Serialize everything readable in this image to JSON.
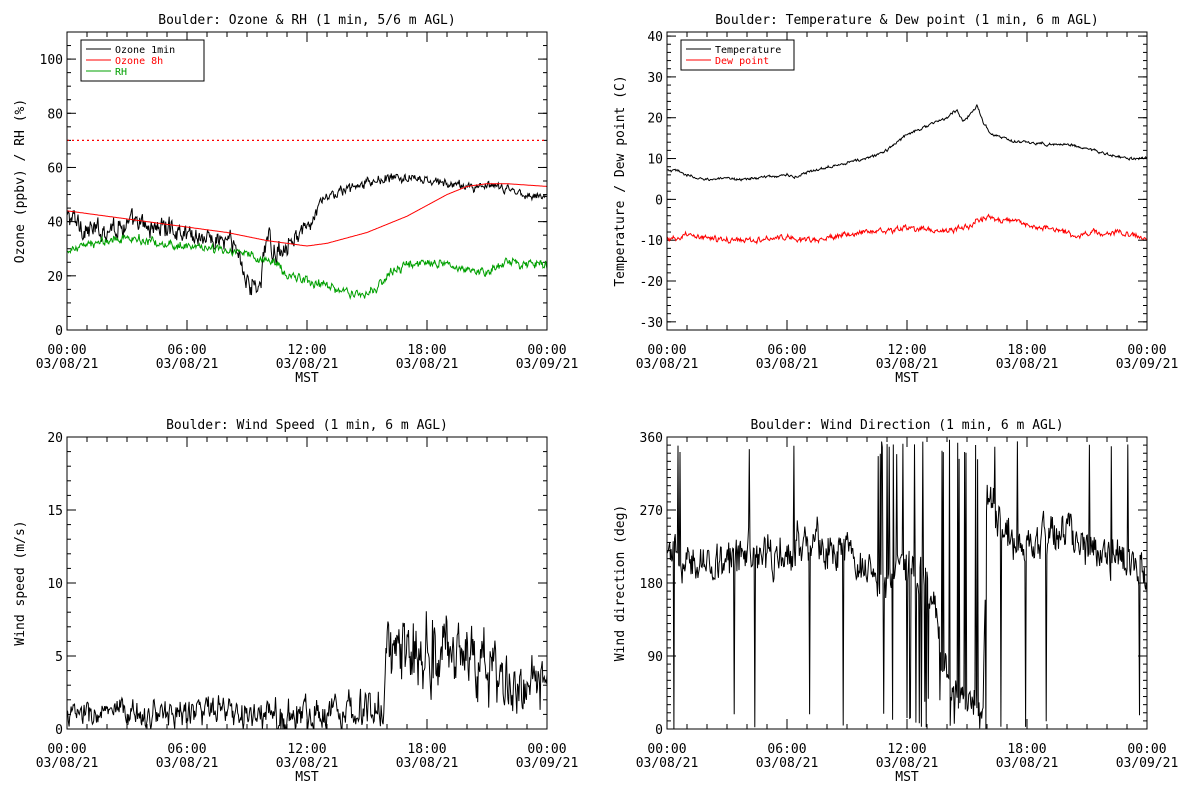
{
  "chart_data": [
    {
      "type": "line",
      "title": "Boulder: Ozone & RH (1 min, 5/6 m AGL)",
      "xlabel": "MST",
      "ylabel": "Ozone (ppbv) / RH (%)",
      "xlim": [
        0,
        24
      ],
      "ylim": [
        0,
        110
      ],
      "xticks": [
        {
          "value": 0,
          "time": "00:00",
          "date": "03/08/21"
        },
        {
          "value": 6,
          "time": "06:00",
          "date": "03/08/21"
        },
        {
          "value": 12,
          "time": "12:00",
          "date": "03/08/21"
        },
        {
          "value": 18,
          "time": "18:00",
          "date": "03/08/21"
        },
        {
          "value": 24,
          "time": "00:00",
          "date": "03/09/21"
        }
      ],
      "yticks": [
        0,
        20,
        40,
        60,
        80,
        100
      ],
      "minor_x_step": 1,
      "minor_y_step": 5,
      "legend": {
        "position": "top-left"
      },
      "reference_lines": [
        {
          "y": 70,
          "color": "#ff0000",
          "style": "dotted"
        }
      ],
      "series": [
        {
          "name": "Ozone 1min",
          "color": "#000000",
          "noise": 2.5,
          "noise_varying": [
            [
              0,
              3
            ],
            [
              8,
              3
            ],
            [
              9,
              4
            ],
            [
              10.5,
              3
            ],
            [
              12.5,
              1.5
            ],
            [
              24,
              1
            ]
          ],
          "x": [
            0,
            0.5,
            1,
            1.5,
            2,
            3,
            4,
            5,
            6,
            7,
            7.5,
            8,
            8.5,
            9,
            9.3,
            9.6,
            9.8,
            10,
            10.3,
            10.6,
            11,
            11.5,
            12,
            12.3,
            12.7,
            13,
            14,
            15,
            16,
            17,
            18,
            19,
            20,
            21,
            22,
            23,
            24
          ],
          "y": [
            42,
            40,
            37,
            36,
            38,
            39,
            38,
            38,
            36,
            34,
            33,
            33,
            29,
            20,
            14,
            18,
            24,
            35,
            28,
            30,
            33,
            35,
            37,
            40,
            47,
            49,
            52,
            54,
            56,
            56,
            55,
            54,
            53,
            53,
            52,
            50,
            49
          ]
        },
        {
          "name": "Ozone 8h",
          "color": "#ff0000",
          "noise": 0,
          "x": [
            0,
            2,
            4,
            6,
            8,
            10,
            11,
            12,
            13,
            14,
            15,
            16,
            17,
            18,
            19,
            20,
            21,
            22,
            23,
            24
          ],
          "y": [
            44,
            42,
            40,
            38,
            36,
            33,
            32,
            31,
            32,
            34,
            36,
            39,
            42,
            46,
            50,
            53,
            54,
            54,
            53.5,
            53
          ]
        },
        {
          "name": "RH",
          "color": "#00a000",
          "noise": 1.2,
          "x": [
            0,
            1,
            2,
            3,
            4,
            5,
            6,
            7,
            8,
            9,
            10,
            10.5,
            11,
            12,
            13,
            14,
            14.5,
            15,
            15.5,
            16,
            17,
            18,
            19,
            20,
            20.5,
            21,
            22,
            23,
            24
          ],
          "y": [
            29,
            31,
            33,
            34,
            33,
            32,
            31,
            30,
            29,
            28,
            26,
            24,
            21,
            18,
            16,
            14,
            13,
            13,
            15,
            20,
            24,
            25,
            24,
            22,
            21,
            22,
            25,
            25,
            24
          ]
        }
      ]
    },
    {
      "type": "line",
      "title": "Boulder: Temperature & Dew point (1 min, 6 m AGL)",
      "xlabel": "MST",
      "ylabel": "Temperature / Dew point (C)",
      "xlim": [
        0,
        24
      ],
      "ylim": [
        -32,
        41
      ],
      "xticks": [
        {
          "value": 0,
          "time": "00:00",
          "date": "03/08/21"
        },
        {
          "value": 6,
          "time": "06:00",
          "date": "03/08/21"
        },
        {
          "value": 12,
          "time": "12:00",
          "date": "03/08/21"
        },
        {
          "value": 18,
          "time": "18:00",
          "date": "03/08/21"
        },
        {
          "value": 24,
          "time": "00:00",
          "date": "03/09/21"
        }
      ],
      "yticks": [
        -30,
        -20,
        -10,
        0,
        10,
        20,
        30,
        40
      ],
      "minor_x_step": 1,
      "minor_y_step": 2,
      "legend": {
        "position": "top-left"
      },
      "series": [
        {
          "name": "Temperature",
          "color": "#000000",
          "noise": 0.25,
          "x": [
            0,
            0.5,
            1,
            1.5,
            2,
            3,
            4,
            5,
            6,
            6.5,
            7,
            8,
            9,
            10,
            11,
            11.5,
            12,
            13,
            14,
            14.5,
            14.8,
            15.2,
            15.5,
            15.8,
            16.2,
            16.8,
            17.5,
            18,
            19,
            20,
            20.5,
            21,
            22,
            23,
            24
          ],
          "y": [
            7,
            7,
            6,
            5,
            5,
            5,
            5,
            5.5,
            6,
            5.5,
            6.5,
            8,
            9,
            10,
            12,
            14,
            16,
            18,
            20,
            22,
            19,
            21,
            23,
            19,
            16,
            15,
            14,
            14,
            13.5,
            13.5,
            13,
            12.5,
            11,
            10,
            10
          ]
        },
        {
          "name": "Dew point",
          "color": "#ff0000",
          "noise": 0.5,
          "x": [
            0,
            1,
            2,
            3,
            4,
            5,
            6,
            7,
            8,
            9,
            10,
            11,
            12,
            13,
            14,
            14.5,
            15,
            15.5,
            16,
            16.5,
            17,
            17.5,
            18,
            19,
            20,
            20.5,
            21,
            22,
            23,
            24
          ],
          "y": [
            -10,
            -9,
            -9.5,
            -10,
            -10,
            -9.5,
            -9.5,
            -10,
            -9.5,
            -8.5,
            -8,
            -7.5,
            -7,
            -7.5,
            -8,
            -7,
            -7,
            -5,
            -4.5,
            -5,
            -5,
            -5.5,
            -6,
            -7,
            -8,
            -9,
            -8.5,
            -8,
            -8.5,
            -9.5
          ]
        }
      ]
    },
    {
      "type": "line",
      "title": "Boulder: Wind Speed (1 min, 6 m AGL)",
      "xlabel": "MST",
      "ylabel": "Wind speed (m/s)",
      "xlim": [
        0,
        24
      ],
      "ylim": [
        0,
        20
      ],
      "xticks": [
        {
          "value": 0,
          "time": "00:00",
          "date": "03/08/21"
        },
        {
          "value": 6,
          "time": "06:00",
          "date": "03/08/21"
        },
        {
          "value": 12,
          "time": "12:00",
          "date": "03/08/21"
        },
        {
          "value": 18,
          "time": "18:00",
          "date": "03/08/21"
        },
        {
          "value": 24,
          "time": "00:00",
          "date": "03/09/21"
        }
      ],
      "yticks": [
        0,
        5,
        10,
        15,
        20
      ],
      "minor_x_step": 1,
      "minor_y_step": 1,
      "series": [
        {
          "name": "",
          "color": "#000000",
          "noise_varying": [
            [
              0,
              0.6
            ],
            [
              15.9,
              0.9
            ],
            [
              16.1,
              2.2
            ],
            [
              24,
              1.2
            ]
          ],
          "floor": 0,
          "x": [
            0,
            2,
            4,
            6,
            7,
            8,
            10,
            12,
            13,
            14,
            15,
            15.8,
            16,
            16.5,
            17,
            18,
            19,
            20,
            21,
            22,
            23,
            24
          ],
          "y": [
            1,
            1,
            1,
            1.2,
            1.3,
            1,
            0.8,
            1,
            1.3,
            1.5,
            1.5,
            1.2,
            5,
            5.5,
            5.5,
            5.5,
            5.5,
            5,
            4,
            3,
            2.8,
            3
          ]
        }
      ]
    },
    {
      "type": "line",
      "title": "Boulder: Wind Direction (1 min, 6 m AGL)",
      "xlabel": "MST",
      "ylabel": "Wind direction (deg)",
      "xlim": [
        0,
        24
      ],
      "ylim": [
        0,
        360
      ],
      "xticks": [
        {
          "value": 0,
          "time": "00:00",
          "date": "03/08/21"
        },
        {
          "value": 6,
          "time": "06:00",
          "date": "03/08/21"
        },
        {
          "value": 12,
          "time": "12:00",
          "date": "03/08/21"
        },
        {
          "value": 18,
          "time": "18:00",
          "date": "03/08/21"
        },
        {
          "value": 24,
          "time": "00:00",
          "date": "03/09/21"
        }
      ],
      "yticks": [
        0,
        90,
        180,
        270,
        360
      ],
      "minor_x_step": 1,
      "minor_y_step": 10,
      "series": [
        {
          "name": "",
          "color": "#000000",
          "noise": 18,
          "floor": 0,
          "ceil": 360,
          "x": [
            0,
            1,
            2,
            3,
            4,
            5,
            6,
            7,
            8,
            9,
            10,
            11,
            12,
            13,
            14,
            15,
            15.8,
            16,
            16.5,
            17,
            18,
            19,
            20,
            21,
            22,
            23,
            24
          ],
          "y": [
            210,
            205,
            215,
            210,
            215,
            210,
            220,
            225,
            220,
            215,
            200,
            180,
            200,
            190,
            60,
            40,
            30,
            290,
            265,
            240,
            220,
            230,
            245,
            230,
            215,
            205,
            185
          ]
        }
      ]
    }
  ]
}
